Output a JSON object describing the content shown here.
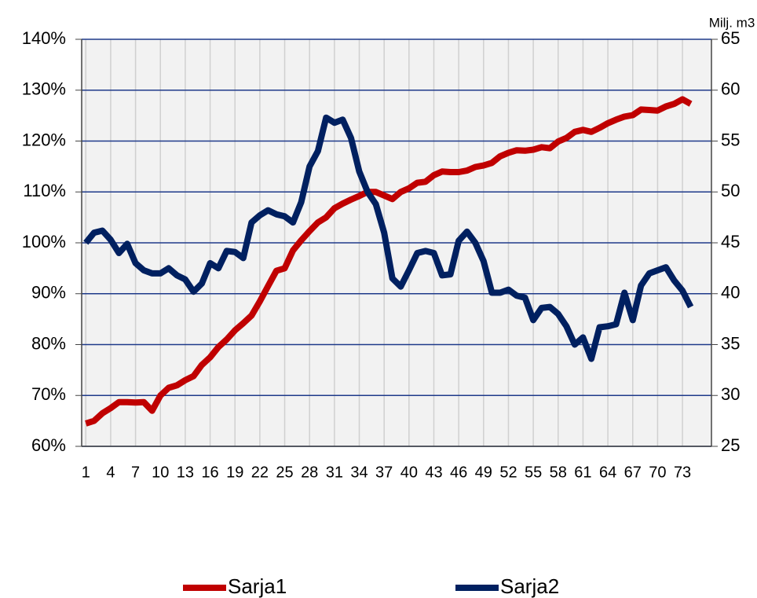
{
  "chart_data": {
    "type": "line",
    "y2_label": "Milj. m3",
    "categories": [
      1,
      null,
      null,
      4,
      null,
      null,
      7,
      null,
      null,
      10,
      null,
      null,
      13,
      null,
      null,
      16,
      null,
      null,
      19,
      null,
      null,
      22,
      null,
      null,
      25,
      null,
      null,
      28,
      null,
      null,
      31,
      null,
      null,
      34,
      null,
      null,
      37,
      null,
      null,
      40,
      null,
      null,
      43,
      null,
      null,
      46,
      null,
      null,
      49,
      null,
      null,
      52,
      null,
      null,
      55,
      null,
      null,
      58,
      null,
      null,
      61,
      null,
      null,
      64,
      null,
      null,
      67,
      null,
      null,
      70,
      null,
      null,
      73,
      null,
      null,
      null
    ],
    "series": [
      {
        "name": "Sarja1",
        "color": "#c00000",
        "axis": "y",
        "values": [
          64.5,
          65,
          66.5,
          67.5,
          68.7,
          68.7,
          68.6,
          68.7,
          67,
          70,
          71.5,
          72,
          73,
          73.8,
          76,
          77.5,
          79.5,
          81,
          82.8,
          84.2,
          85.7,
          88.5,
          91.5,
          94.5,
          95,
          98.5,
          100.5,
          102.3,
          104,
          105,
          106.8,
          107.7,
          108.5,
          109.2,
          110,
          110,
          109.3,
          108.6,
          110,
          110.7,
          111.8,
          112,
          113.3,
          114,
          113.9,
          113.9,
          114.2,
          114.9,
          115.2,
          115.7,
          117,
          117.7,
          118.2,
          118.1,
          118.3,
          118.8,
          118.6,
          119.9,
          120.6,
          121.8,
          122.2,
          121.8,
          122.6,
          123.5,
          124.2,
          124.8,
          125.1,
          126.2,
          126.1,
          126,
          126.8,
          127.3,
          128.2,
          127.3,
          null,
          null
        ]
      },
      {
        "name": "Sarja2",
        "color": "#002060",
        "axis": "y2",
        "values": [
          45,
          46,
          46.2,
          45.3,
          44,
          44.9,
          43,
          42.3,
          42,
          42,
          42.5,
          41.8,
          41.4,
          40.2,
          41,
          43,
          42.5,
          44.2,
          44.1,
          43.5,
          47,
          47.7,
          48.2,
          47.8,
          47.6,
          47,
          49,
          52.5,
          54,
          57.3,
          56.8,
          57.1,
          55.3,
          52,
          50,
          48.8,
          46,
          41.5,
          40.7,
          42.3,
          44,
          44.2,
          44,
          41.8,
          41.9,
          45.2,
          46.1,
          45,
          43.2,
          40.1,
          40.1,
          40.4,
          39.8,
          39.6,
          37.4,
          38.6,
          38.7,
          38,
          36.8,
          35,
          35.7,
          33.6,
          36.7,
          36.8,
          37,
          40.1,
          37.4,
          40.8,
          42,
          42.3,
          42.6,
          41.3,
          40.3,
          38.7,
          null,
          null
        ]
      }
    ],
    "ylim": [
      60,
      140
    ],
    "yticks": [
      {
        "value": 60,
        "label": "60%"
      },
      {
        "value": 70,
        "label": "70%"
      },
      {
        "value": 80,
        "label": "80%"
      },
      {
        "value": 90,
        "label": "90%"
      },
      {
        "value": 100,
        "label": "100%"
      },
      {
        "value": 110,
        "label": "110%"
      },
      {
        "value": 120,
        "label": "120%"
      },
      {
        "value": 130,
        "label": "130%"
      },
      {
        "value": 140,
        "label": "140%"
      }
    ],
    "y2lim": [
      25,
      65
    ],
    "y2ticks": [
      25,
      30,
      35,
      40,
      45,
      50,
      55,
      60,
      65
    ],
    "grid": true,
    "legend": "bottom"
  }
}
